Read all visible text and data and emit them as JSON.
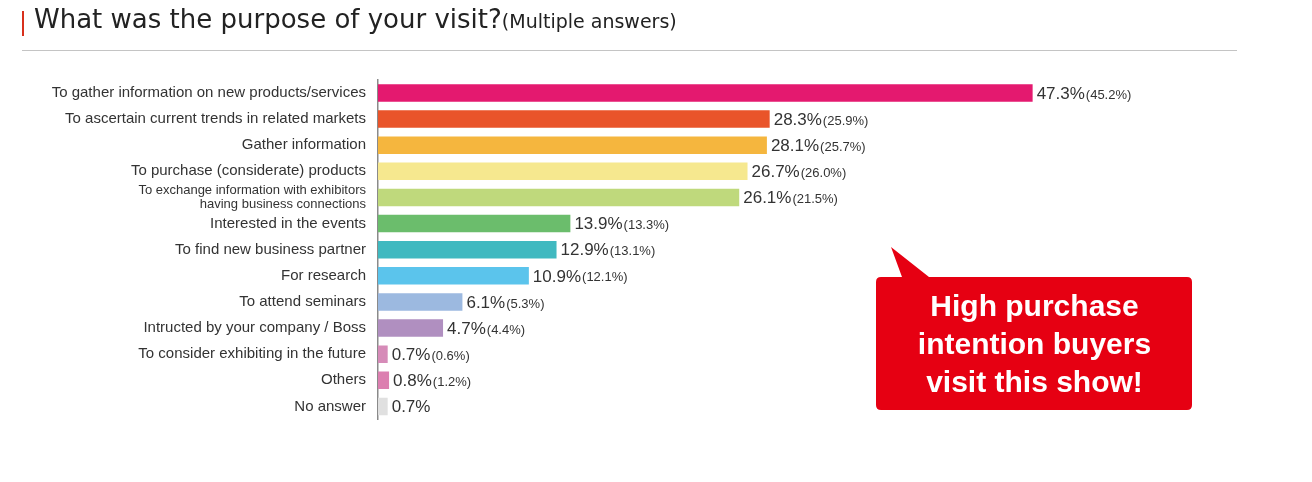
{
  "chart_data": {
    "type": "bar",
    "orientation": "horizontal",
    "title": "What was the purpose of your visit?",
    "subtitle": "(Multiple answers)",
    "categories": [
      "To gather information on new products/services",
      "To ascertain current trends in related markets",
      "Gather information",
      "To purchase (considerate) products",
      "To exchange information with exhibitors having business connections",
      "Interested in the events",
      "To find new business partner",
      "For research",
      "To attend seminars",
      "Intructed by your company / Boss",
      "To consider exhibiting in the future",
      "Others",
      "No answer"
    ],
    "values": [
      47.3,
      28.3,
      28.1,
      26.7,
      26.1,
      13.9,
      12.9,
      10.9,
      6.1,
      4.7,
      0.7,
      0.8,
      0.7
    ],
    "colors": [
      "#e4196f",
      "#e9542a",
      "#f5b63e",
      "#f6e88f",
      "#bfd97c",
      "#6bbd6c",
      "#40b9c0",
      "#5bc4ec",
      "#9cb9e0",
      "#b08fc0",
      "#d68bb8",
      "#dc7fb0",
      "#e0e0e0"
    ],
    "value_labels": [
      "47.3%(45.2%)",
      "28.3%(25.9%)",
      "28.1%(25.7%)",
      "26.7%(26.0%)",
      "26.1%(21.5%)",
      "13.9%(13.3%)",
      "12.9%(13.1%)",
      "10.9%(12.1%)",
      "6.1%(5.3%)",
      "4.7%(4.4%)",
      "0.7%(0.6%)",
      "0.8%(1.2%)",
      "0.7%"
    ],
    "annotations": [
      "High purchase intention buyers visit this show!"
    ]
  }
}
